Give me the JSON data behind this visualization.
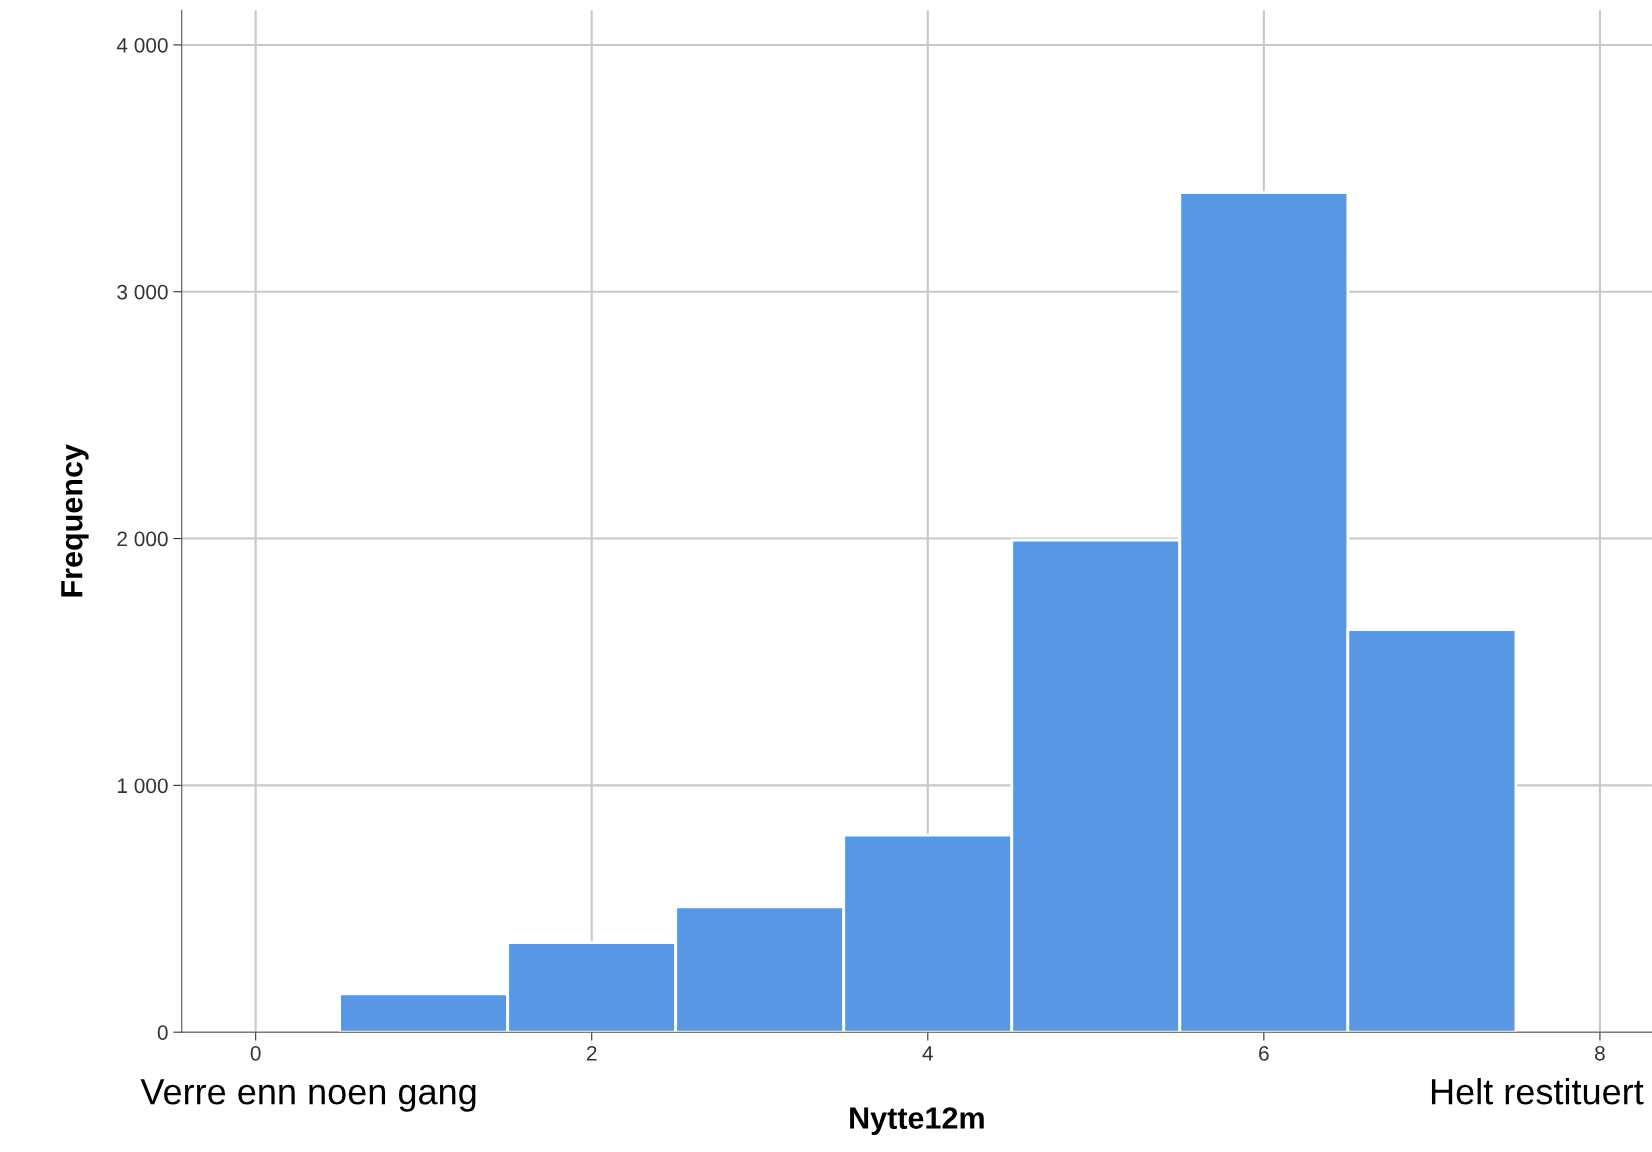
{
  "chart_data": {
    "type": "histogram",
    "xlabel": "Nytte12m",
    "ylabel": "Frequency",
    "bins": [
      0.5,
      1.5,
      2.5,
      3.5,
      4.5,
      5.5,
      6.5,
      7.5
    ],
    "values": [
      155,
      363,
      508,
      798,
      1994,
      3402,
      1631
    ],
    "color": "#5797e3",
    "xlim": [
      -0.44,
      8.31
    ],
    "xticks": [
      0,
      2,
      4,
      6,
      8
    ],
    "ylim": [
      0,
      4140
    ],
    "yticks": [
      0,
      {
        "value": 1000,
        "label": "1 000"
      },
      {
        "value": 2000,
        "label": "2 000"
      },
      {
        "value": 3000,
        "label": "3 000"
      },
      {
        "value": 4000,
        "label": "4 000"
      }
    ],
    "grid": true,
    "annotations": [
      "Verre enn noen gang",
      "Helt restituert"
    ]
  }
}
